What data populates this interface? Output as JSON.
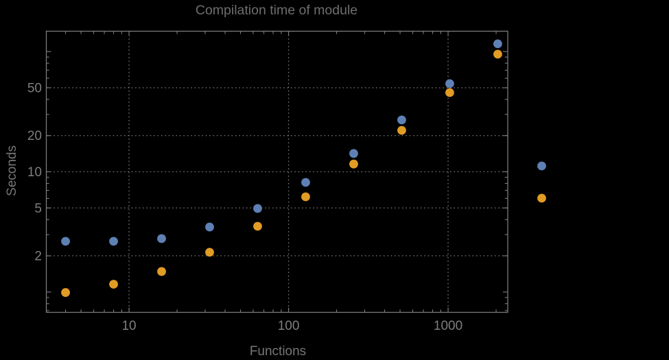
{
  "chart_data": {
    "type": "scatter",
    "title": "Compilation time of module",
    "xlabel": "Functions",
    "ylabel": "Seconds",
    "x_scale": "log",
    "y_scale": "log",
    "xlim": [
      3.03,
      2366
    ],
    "ylim": [
      0.677,
      147.7
    ],
    "grid": "dotted",
    "x_major_ticks": [
      10,
      100,
      1000
    ],
    "x_major_tick_labels": [
      "10",
      "100",
      "1000"
    ],
    "y_major_ticks": [
      2,
      5,
      10,
      20,
      50
    ],
    "y_major_tick_labels": [
      "2",
      "5",
      "10",
      "20",
      "50"
    ],
    "series": [
      {
        "name": "blue-series",
        "color": "#5E81B5",
        "x": [
          4,
          8,
          16,
          32,
          64,
          128,
          256,
          512,
          1024,
          2048
        ],
        "y": [
          2.64,
          2.64,
          2.78,
          3.47,
          4.95,
          8.16,
          14.2,
          27.0,
          54.1,
          116
        ]
      },
      {
        "name": "orange-series",
        "color": "#E19C24",
        "x": [
          4,
          8,
          16,
          32,
          64,
          128,
          256,
          512,
          1024,
          2048
        ],
        "y": [
          0.99,
          1.16,
          1.48,
          2.14,
          3.52,
          6.19,
          11.6,
          22.1,
          45.6,
          95.1
        ]
      }
    ],
    "legend": {
      "position": "outside-right",
      "entries": [
        {
          "label": "",
          "color": "#5E81B5"
        },
        {
          "label": "",
          "color": "#E19C24"
        }
      ]
    }
  },
  "style": {
    "background": "#000000",
    "frame_color": "#7c7c7c",
    "grid_color": "#7c7c7c",
    "tick_color": "#7c7c7c",
    "tick_label_color": "#7e7e7e",
    "axis_label_color": "#777777",
    "title_color": "#6e6e6e"
  }
}
